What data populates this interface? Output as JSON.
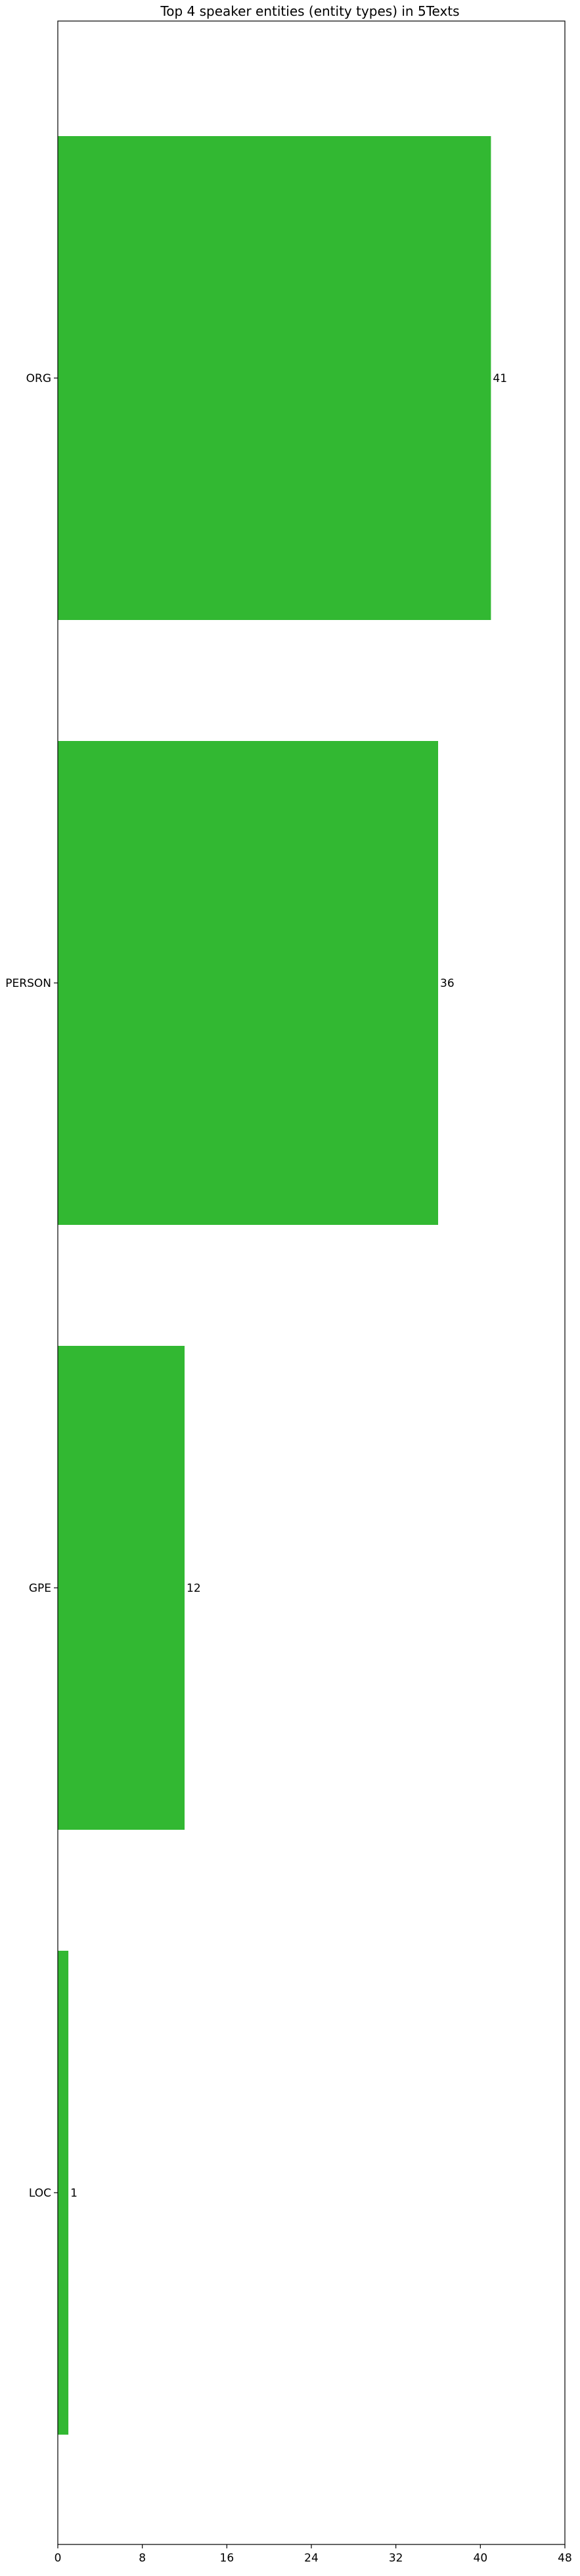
{
  "chart_data": {
    "type": "bar",
    "orientation": "horizontal",
    "title": "Top 4 speaker entities (entity types) in 5Texts",
    "xlabel": "",
    "ylabel": "",
    "categories": [
      "ORG",
      "PERSON",
      "GPE",
      "LOC"
    ],
    "values": [
      41,
      36,
      12,
      1
    ],
    "data_labels": [
      "41",
      "36",
      "12",
      "1"
    ],
    "xlim": [
      0,
      48
    ],
    "xticks": [
      0,
      8,
      16,
      24,
      32,
      40,
      48
    ],
    "xtick_labels": [
      "0",
      "8",
      "16",
      "24",
      "32",
      "40",
      "48"
    ],
    "bar_color": "#32b832",
    "grid": false,
    "legend": "none"
  }
}
